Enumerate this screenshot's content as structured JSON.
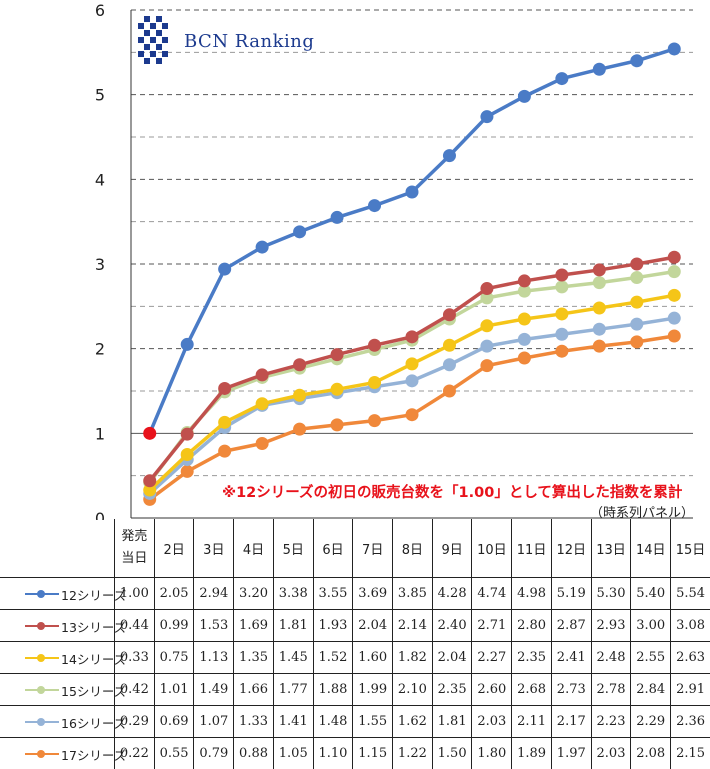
{
  "logo": {
    "text": "BCN Ranking"
  },
  "note": {
    "main": "※12シリーズの初日の販売台数を「1.00」として算出した指数を累計",
    "sub": "（時系列パネル）"
  },
  "chart_data": {
    "type": "line",
    "categories": [
      "発売\n当日",
      "2日",
      "3日",
      "4日",
      "5日",
      "6日",
      "7日",
      "8日",
      "9日",
      "10日",
      "11日",
      "12日",
      "13日",
      "14日",
      "15日"
    ],
    "category_lines": [
      [
        "発売",
        "当日"
      ],
      [
        "2日"
      ],
      [
        "3日"
      ],
      [
        "4日"
      ],
      [
        "5日"
      ],
      [
        "6日"
      ],
      [
        "7日"
      ],
      [
        "8日"
      ],
      [
        "9日"
      ],
      [
        "10日"
      ],
      [
        "11日"
      ],
      [
        "12日"
      ],
      [
        "13日"
      ],
      [
        "14日"
      ],
      [
        "15日"
      ]
    ],
    "ylim": [
      0,
      6
    ],
    "yticks": [
      "0",
      "1",
      "2",
      "3",
      "4",
      "5",
      "6"
    ],
    "grid": "dashed-horizontal",
    "highlight_point": {
      "series": "12シリーズ",
      "index": 0,
      "color": "#e8121b"
    },
    "series": [
      {
        "name": "12シリーズ",
        "color": "#4a7bc6",
        "values": [
          1.0,
          2.05,
          2.94,
          3.2,
          3.38,
          3.55,
          3.69,
          3.85,
          4.28,
          4.74,
          4.98,
          5.19,
          5.3,
          5.4,
          5.54
        ],
        "labels": [
          "1.00",
          "2.05",
          "2.94",
          "3.20",
          "3.38",
          "3.55",
          "3.69",
          "3.85",
          "4.28",
          "4.74",
          "4.98",
          "5.19",
          "5.30",
          "5.40",
          "5.54"
        ]
      },
      {
        "name": "13シリーズ",
        "color": "#c0504d",
        "values": [
          0.44,
          0.99,
          1.53,
          1.69,
          1.81,
          1.93,
          2.04,
          2.14,
          2.4,
          2.71,
          2.8,
          2.87,
          2.93,
          3.0,
          3.08
        ],
        "labels": [
          "0.44",
          "0.99",
          "1.53",
          "1.69",
          "1.81",
          "1.93",
          "2.04",
          "2.14",
          "2.40",
          "2.71",
          "2.80",
          "2.87",
          "2.93",
          "3.00",
          "3.08"
        ]
      },
      {
        "name": "14シリーズ",
        "color": "#f5c518",
        "values": [
          0.33,
          0.75,
          1.13,
          1.35,
          1.45,
          1.52,
          1.6,
          1.82,
          2.04,
          2.27,
          2.35,
          2.41,
          2.48,
          2.55,
          2.63
        ],
        "labels": [
          "0.33",
          "0.75",
          "1.13",
          "1.35",
          "1.45",
          "1.52",
          "1.60",
          "1.82",
          "2.04",
          "2.27",
          "2.35",
          "2.41",
          "2.48",
          "2.55",
          "2.63"
        ]
      },
      {
        "name": "15シリーズ",
        "color": "#c2d69b",
        "values": [
          0.42,
          1.01,
          1.49,
          1.66,
          1.77,
          1.88,
          1.99,
          2.1,
          2.35,
          2.6,
          2.68,
          2.73,
          2.78,
          2.84,
          2.91
        ],
        "labels": [
          "0.42",
          "1.01",
          "1.49",
          "1.66",
          "1.77",
          "1.88",
          "1.99",
          "2.10",
          "2.35",
          "2.60",
          "2.68",
          "2.73",
          "2.78",
          "2.84",
          "2.91"
        ]
      },
      {
        "name": "16シリーズ",
        "color": "#95b3d7",
        "values": [
          0.29,
          0.69,
          1.07,
          1.33,
          1.41,
          1.48,
          1.55,
          1.62,
          1.81,
          2.03,
          2.11,
          2.17,
          2.23,
          2.29,
          2.36
        ],
        "labels": [
          "0.29",
          "0.69",
          "1.07",
          "1.33",
          "1.41",
          "1.48",
          "1.55",
          "1.62",
          "1.81",
          "2.03",
          "2.11",
          "2.17",
          "2.23",
          "2.29",
          "2.36"
        ]
      },
      {
        "name": "17シリーズ",
        "color": "#f0883a",
        "values": [
          0.22,
          0.55,
          0.79,
          0.88,
          1.05,
          1.1,
          1.15,
          1.22,
          1.5,
          1.8,
          1.89,
          1.97,
          2.03,
          2.08,
          2.15
        ],
        "labels": [
          "0.22",
          "0.55",
          "0.79",
          "0.88",
          "1.05",
          "1.10",
          "1.15",
          "1.22",
          "1.50",
          "1.80",
          "1.89",
          "1.97",
          "2.03",
          "2.08",
          "2.15"
        ]
      }
    ]
  }
}
